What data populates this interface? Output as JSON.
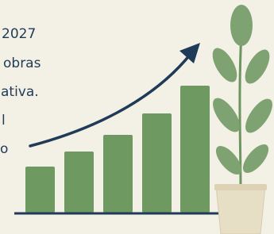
{
  "text_lines": [
    "2027",
    "obras",
    "ativa.",
    "l",
    "o"
  ]
}
